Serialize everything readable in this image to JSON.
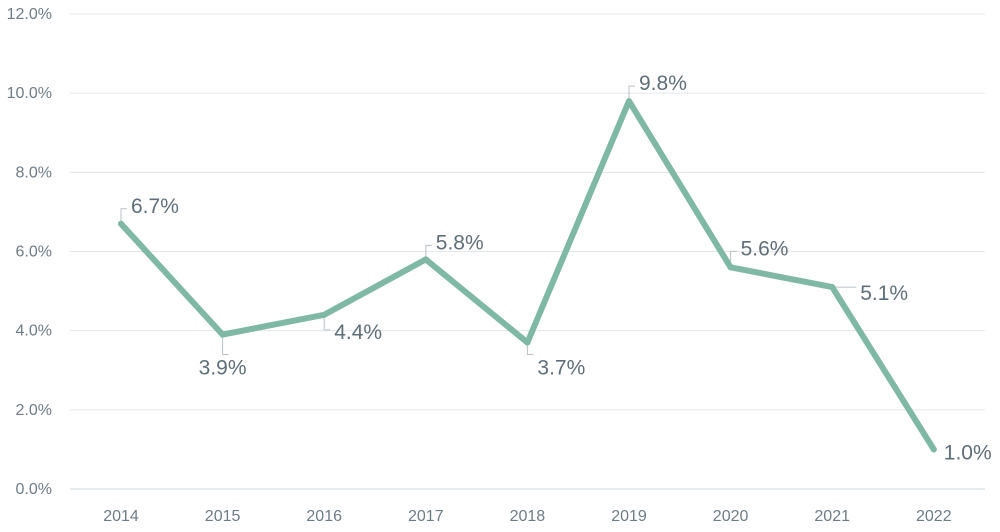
{
  "chart_data": {
    "type": "line",
    "x": [
      "2014",
      "2015",
      "2016",
      "2017",
      "2018",
      "2019",
      "2020",
      "2021",
      "2022"
    ],
    "series": [
      {
        "values": [
          6.7,
          3.9,
          4.4,
          5.8,
          3.7,
          9.8,
          5.6,
          5.1,
          1.0
        ],
        "labels": [
          "6.7%",
          "3.9%",
          "4.4%",
          "5.8%",
          "3.7%",
          "9.8%",
          "5.6%",
          "5.1%",
          "1.0%"
        ]
      }
    ],
    "title": "",
    "xlabel": "",
    "ylabel": "",
    "ylim": [
      0,
      12
    ],
    "yticks": [
      "0.0%",
      "2.0%",
      "4.0%",
      "6.0%",
      "8.0%",
      "10.0%",
      "12.0%"
    ],
    "grid": true,
    "legend": "none",
    "colors": {
      "line": "#7fb8a4"
    }
  }
}
